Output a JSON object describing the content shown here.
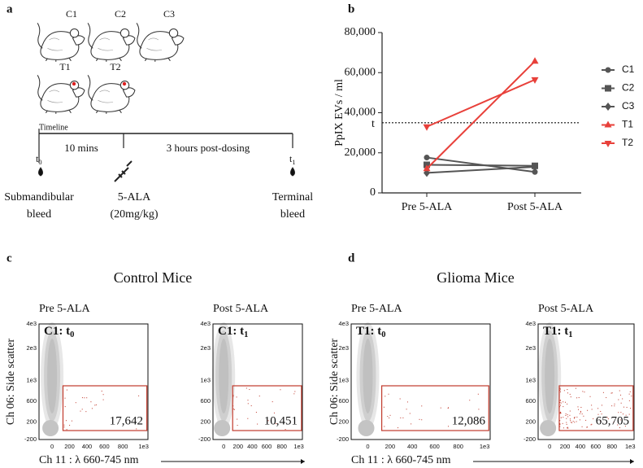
{
  "panel_letters": [
    "a",
    "b",
    "c",
    "d"
  ],
  "timeline": {
    "mice": [
      "C1",
      "C2",
      "C3",
      "T1",
      "T2"
    ],
    "title": "Timeline",
    "intervals": [
      "10 mins",
      "3 hours post-dosing"
    ],
    "points": [
      {
        "time": "t",
        "sub": "0",
        "lines": [
          "Submandibular",
          "bleed"
        ]
      },
      {
        "lines": [
          "5-ALA",
          "(20mg/kg)"
        ]
      },
      {
        "time": "t",
        "sub": "1",
        "lines": [
          "Terminal",
          "bleed"
        ]
      }
    ]
  },
  "chart_data": {
    "type": "line",
    "y_label": "PpIX EVs / ml",
    "categories": [
      "Pre 5-ALA",
      "Post 5-ALA"
    ],
    "series": [
      {
        "name": "C1",
        "color": "#555555",
        "marker": "circle",
        "values": [
          17642,
          10451
        ]
      },
      {
        "name": "C2",
        "color": "#555555",
        "marker": "square",
        "values": [
          14000,
          13500
        ]
      },
      {
        "name": "C3",
        "color": "#555555",
        "marker": "diamond",
        "values": [
          10000,
          13000
        ]
      },
      {
        "name": "T1",
        "color": "#e8403a",
        "marker": "triangle-up",
        "values": [
          12086,
          65705
        ]
      },
      {
        "name": "T2",
        "color": "#e8403a",
        "marker": "triangle-down",
        "values": [
          33000,
          56500
        ]
      }
    ],
    "ylim": [
      0,
      80000
    ],
    "yticks": [
      0,
      {
        "value": 20000,
        "label": "20,000"
      },
      {
        "value": 40000,
        "label": "40,000"
      },
      {
        "value": 60000,
        "label": "60,000"
      },
      {
        "value": 80000,
        "label": "80,000"
      }
    ],
    "threshold": {
      "value": 35000,
      "label": "t"
    },
    "legend": "right"
  },
  "flow": {
    "x_label": "Ch 11 : λ 660-745 nm",
    "y_label": "Ch 06: Side scatter",
    "y_ticks": [
      "4e3",
      "2e3",
      "1e3",
      "600",
      "200",
      "-200"
    ],
    "x_ticks": [
      "0",
      "200",
      "400",
      "600",
      "800",
      "1e3"
    ],
    "groups": [
      {
        "title": "Control Mice",
        "color": "#2a7ab5",
        "plots": [
          {
            "condition": "Pre 5-ALA",
            "mouse": "C1: ",
            "time": "t",
            "sub": "0",
            "count": "17,642"
          },
          {
            "condition": "Post 5-ALA",
            "mouse": "C1: ",
            "time": "t",
            "sub": "1",
            "count": "10,451"
          }
        ]
      },
      {
        "title": "Glioma Mice",
        "color": "#b01c1c",
        "plots": [
          {
            "condition": "Pre 5-ALA",
            "mouse": "T1: ",
            "time": "t",
            "sub": "0",
            "count": "12,086"
          },
          {
            "condition": "Post 5-ALA",
            "mouse": "T1: ",
            "time": "t",
            "sub": "1",
            "count": "65,705"
          }
        ]
      }
    ]
  }
}
